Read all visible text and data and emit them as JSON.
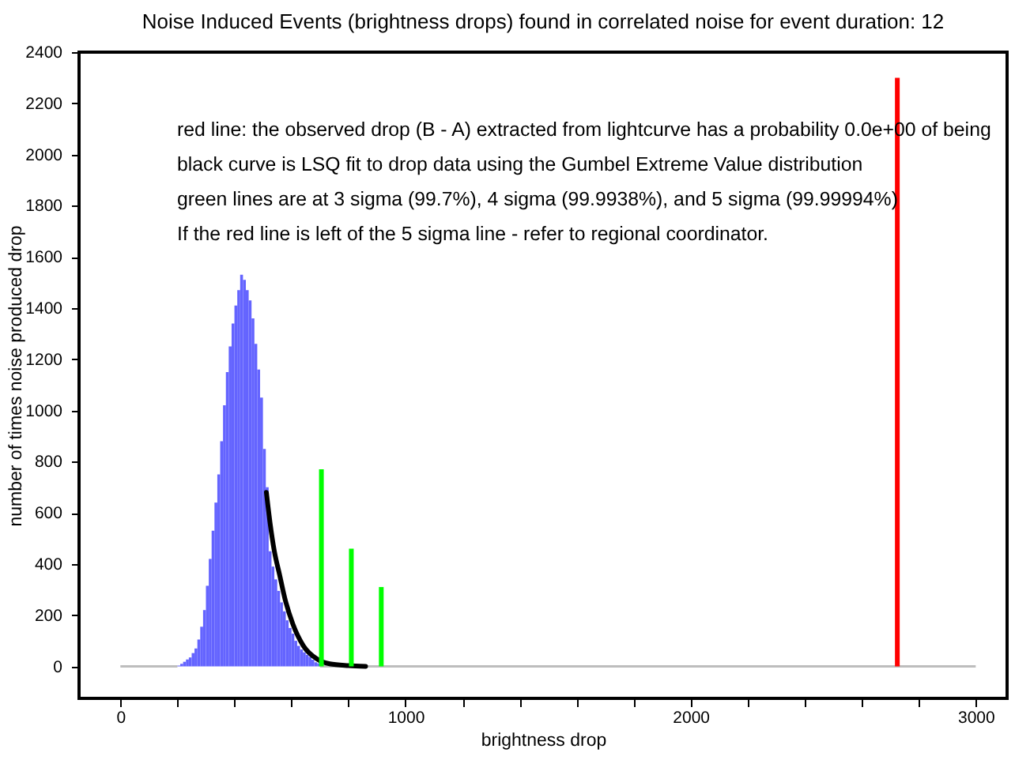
{
  "chart_data": {
    "type": "histogram",
    "title": "Noise Induced Events (brightness drops) found in correlated noise for event duration: 12",
    "xlabel": "brightness drop",
    "ylabel": "number of times noise produced drop",
    "xlim": [
      -145,
      3110
    ],
    "ylim": [
      -125,
      2400
    ],
    "xticks": [
      0,
      {
        "value": 200,
        "label": null
      },
      {
        "value": 400,
        "label": null
      },
      {
        "value": 600,
        "label": null
      },
      {
        "value": 800,
        "label": null
      },
      1000,
      {
        "value": 1200,
        "label": null
      },
      {
        "value": 1400,
        "label": null
      },
      {
        "value": 1600,
        "label": null
      },
      {
        "value": 1800,
        "label": null
      },
      2000,
      {
        "value": 2200,
        "label": null
      },
      {
        "value": 2400,
        "label": null
      },
      {
        "value": 2600,
        "label": null
      },
      {
        "value": 2800,
        "label": null
      },
      3000
    ],
    "yticks": [
      0,
      200,
      400,
      600,
      800,
      1000,
      1200,
      1400,
      1600,
      1800,
      2000,
      2200,
      2400
    ],
    "series": [
      {
        "colors": [
          "#bdbdbd",
          "#6464ff",
          "#6464ff",
          "#6464ff",
          "#6464ff",
          "#6464ff",
          "#6464ff",
          "#6464ff",
          "#6464ff",
          "#6464ff",
          "#6464ff",
          "#6464ff",
          "#6464ff",
          "#6464ff",
          "#6464ff",
          "#6464ff",
          "#6464ff",
          "#6464ff",
          "#6464ff",
          "#6464ff",
          "#6464ff",
          "#6464ff",
          "#6464ff",
          "#6464ff",
          "#6464ff",
          "#6464ff",
          "#6464ff",
          "#6464ff",
          "#6464ff",
          "#6464ff",
          "#6464ff",
          "#6464ff",
          "#6464ff",
          "#6464ff",
          "#6464ff",
          "#6464ff",
          "#6464ff",
          "#6464ff",
          "#6464ff",
          "#6464ff",
          "#6464ff",
          "#6464ff",
          "#6464ff",
          "#6464ff",
          "#6464ff",
          "#6464ff",
          "#6464ff",
          "#6464ff",
          "#6464ff",
          "#6464ff",
          "#6464ff",
          "#bdbdbd"
        ],
        "bins": [
          0,
          200,
          210,
          220,
          230,
          240,
          250,
          260,
          270,
          280,
          290,
          300,
          310,
          320,
          330,
          340,
          350,
          360,
          370,
          380,
          390,
          400,
          410,
          420,
          430,
          440,
          450,
          460,
          470,
          480,
          490,
          500,
          510,
          520,
          530,
          540,
          550,
          560,
          570,
          580,
          590,
          600,
          610,
          620,
          630,
          640,
          650,
          660,
          670,
          680,
          690,
          700,
          3000
        ],
        "values": [
          0,
          3,
          10,
          18,
          27,
          35,
          52,
          70,
          105,
          155,
          220,
          315,
          420,
          530,
          640,
          750,
          880,
          1020,
          1150,
          1250,
          1340,
          1410,
          1470,
          1530,
          1510,
          1470,
          1430,
          1360,
          1260,
          1160,
          1050,
          850,
          700,
          450,
          390,
          340,
          295,
          250,
          215,
          180,
          150,
          128,
          100,
          80,
          66,
          55,
          45,
          37,
          26,
          16,
          12,
          0
        ]
      },
      {
        "type": "line",
        "color": "#000000",
        "x": [
          512,
          525,
          540,
          558,
          577,
          605,
          642,
          688,
          734,
          800,
          860
        ],
        "values": [
          680,
          560,
          450,
          360,
          265,
          165,
          80,
          30,
          10,
          3,
          0
        ]
      },
      {
        "type": "bar",
        "color": "#00ff00",
        "x": [
          705,
          810,
          915
        ],
        "values": [
          770,
          460,
          310
        ]
      },
      {
        "type": "bar",
        "color": "#ff0000",
        "x": [
          2725
        ],
        "values": [
          2300
        ]
      }
    ],
    "annotations": [
      "red line: the observed drop (B - A) extracted from lightcurve has a probability 0.0e+00 of being",
      "black curve is LSQ fit to drop data using the Gumbel Extreme Value distribution",
      "green lines are at 3 sigma (99.7%), 4 sigma (99.9938%), and 5 sigma (99.99994%)",
      "If the red line is left of the 5 sigma line - refer to regional coordinator."
    ]
  }
}
